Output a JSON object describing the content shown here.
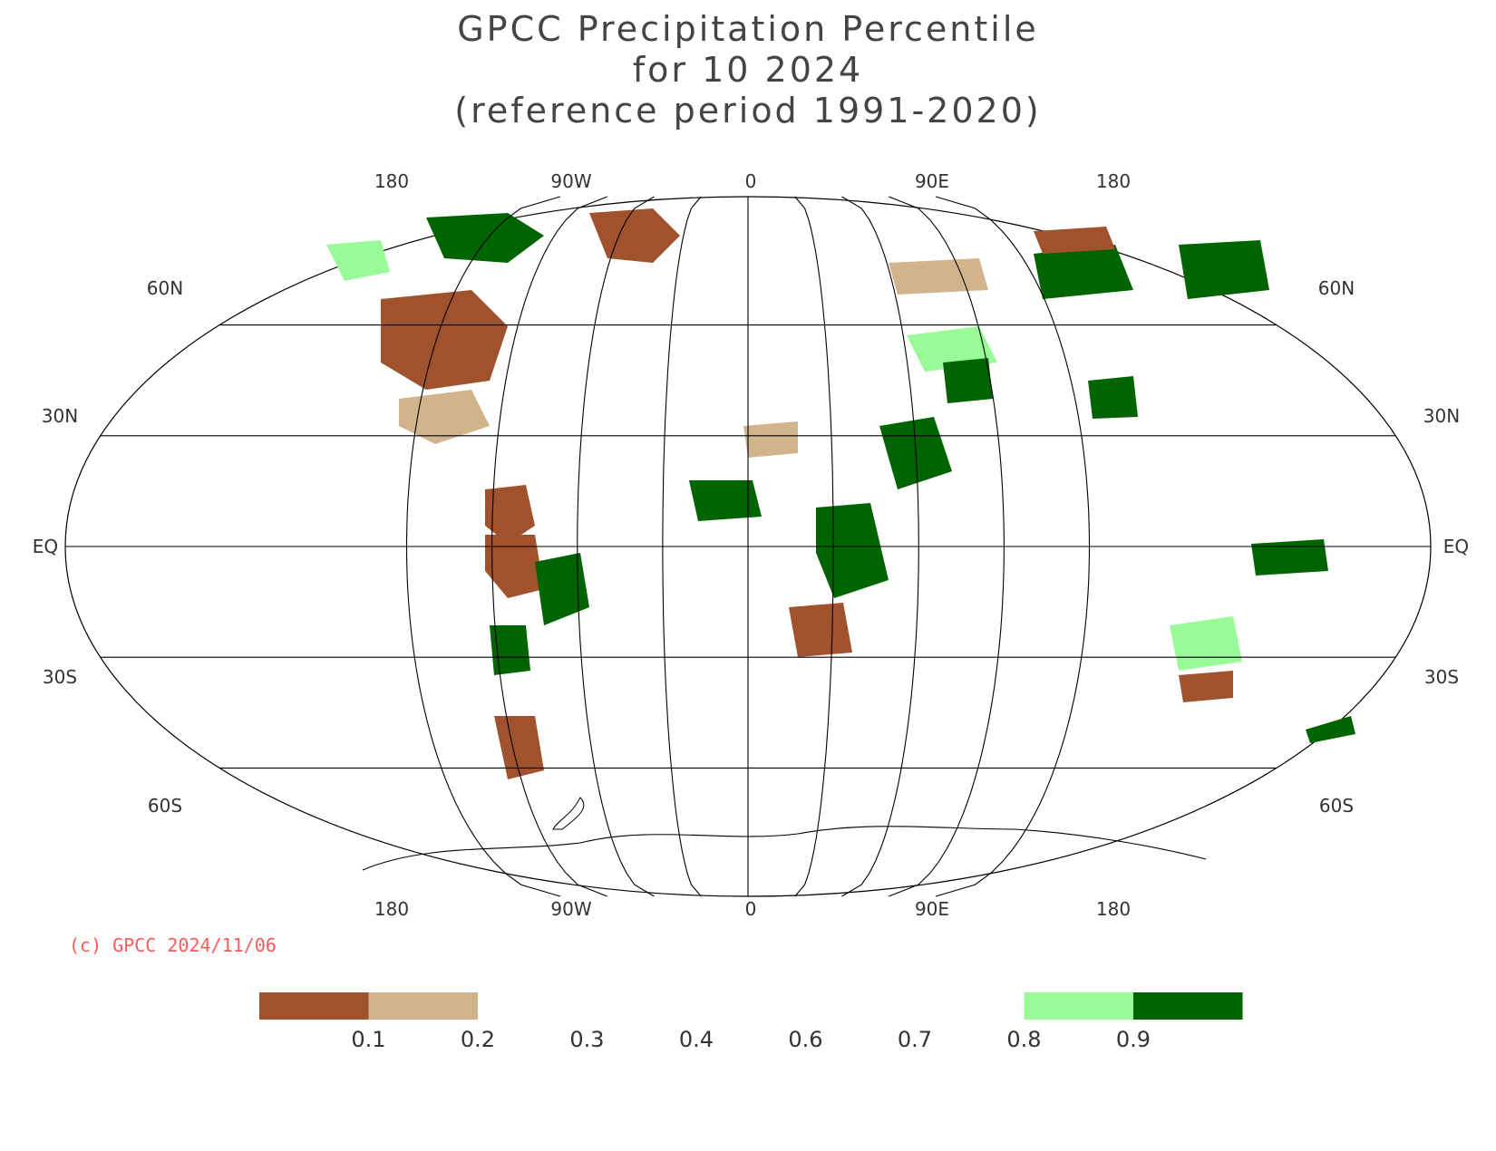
{
  "title": {
    "line1": "GPCC Precipitation Percentile",
    "line2": "for 10 2024",
    "line3": "(reference period 1991-2020)"
  },
  "longitude_labels": [
    "180",
    "90W",
    "0",
    "90E",
    "180"
  ],
  "latitude_labels": {
    "n60": "60N",
    "n30": "30N",
    "eq": "EQ",
    "s30": "30S",
    "s60": "60S"
  },
  "credit": "(c) GPCC 2024/11/06",
  "legend": {
    "boxes": [
      {
        "range": "< 0.1",
        "color": "#a0522d"
      },
      {
        "range": "0.1-0.2",
        "color": "#d2b48c"
      },
      {
        "range": "0.2-0.3",
        "color": "#ffffff"
      },
      {
        "range": "0.3-0.4",
        "color": "#ffffff"
      },
      {
        "range": "0.4-0.6",
        "color": "#ffffff"
      },
      {
        "range": "0.6-0.7",
        "color": "#ffffff"
      },
      {
        "range": "0.7-0.8",
        "color": "#ffffff"
      },
      {
        "range": "0.8-0.9",
        "color": "#98fb98"
      },
      {
        "range": "> 0.9",
        "color": "#006400"
      }
    ],
    "tick_labels": [
      "0.1",
      "0.2",
      "0.3",
      "0.4",
      "0.6",
      "0.7",
      "0.8",
      "0.9"
    ]
  },
  "colors": {
    "very_dry": "#a0522d",
    "dry": "#d2b48c",
    "wet": "#98fb98",
    "very_wet": "#006400",
    "grid": "#000000"
  }
}
